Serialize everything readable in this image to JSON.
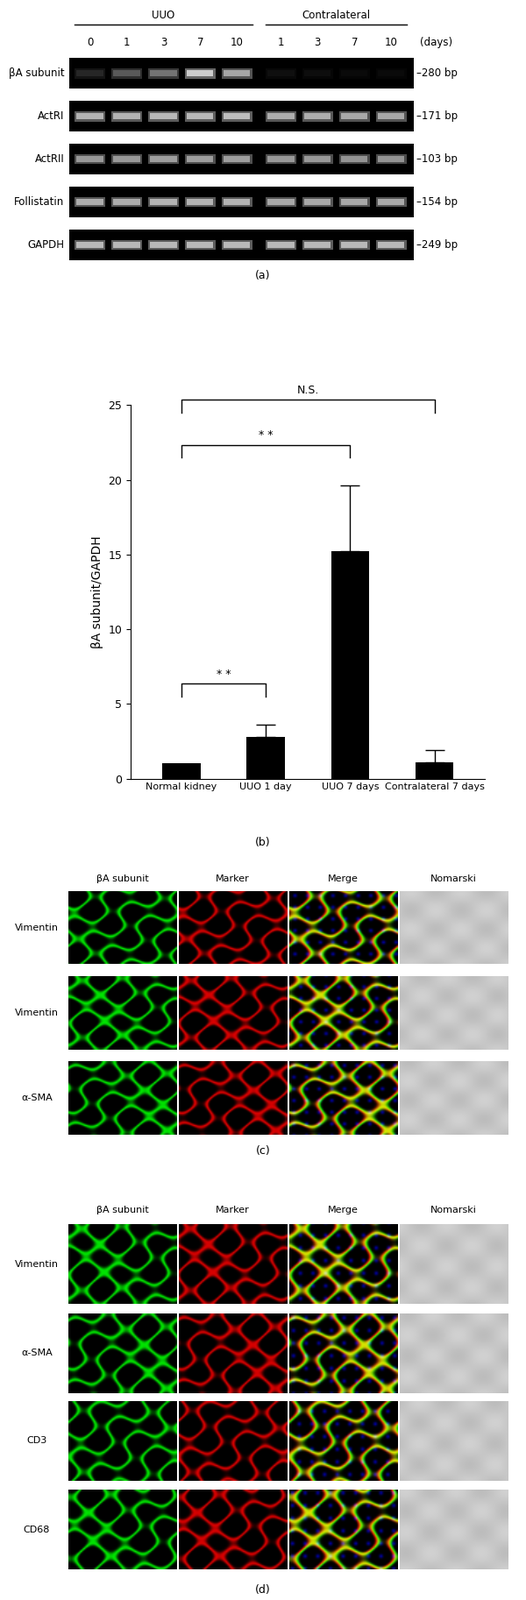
{
  "panel_a": {
    "label": "(a)",
    "unit": "(days)",
    "groups": [
      {
        "name": "UUO",
        "days": [
          "0",
          "1",
          "3",
          "7",
          "10"
        ]
      },
      {
        "name": "Contralateral",
        "days": [
          "1",
          "3",
          "7",
          "10"
        ]
      }
    ],
    "rows": [
      {
        "name": "βA subunit",
        "size": "–280 bp",
        "band_intensity": [
          0.15,
          0.35,
          0.45,
          0.8,
          0.65,
          0.06,
          0.05,
          0.04,
          0.04
        ]
      },
      {
        "name": "ActRI",
        "size": "–171 bp",
        "band_intensity": [
          0.7,
          0.7,
          0.72,
          0.72,
          0.74,
          0.68,
          0.68,
          0.66,
          0.66
        ]
      },
      {
        "name": "ActRII",
        "size": "–103 bp",
        "band_intensity": [
          0.6,
          0.6,
          0.62,
          0.62,
          0.62,
          0.6,
          0.6,
          0.58,
          0.58
        ]
      },
      {
        "name": "Follistatin",
        "size": "–154 bp",
        "band_intensity": [
          0.68,
          0.68,
          0.7,
          0.7,
          0.7,
          0.66,
          0.66,
          0.66,
          0.66
        ]
      },
      {
        "name": "GAPDH",
        "size": "–249 bp",
        "band_intensity": [
          0.72,
          0.72,
          0.72,
          0.72,
          0.72,
          0.72,
          0.72,
          0.72,
          0.72
        ]
      }
    ]
  },
  "chart_data": {
    "type": "bar",
    "label": "(b)",
    "ylabel": "βA subunit/GAPDH",
    "categories": [
      "Normal kidney",
      "UUO 1 day",
      "UUO 7 days",
      "Contralateral 7 days"
    ],
    "values": [
      1.0,
      2.8,
      15.2,
      1.1
    ],
    "errors": [
      0,
      0.8,
      4.4,
      0.8
    ],
    "color": "#000000",
    "ylim": [
      0,
      25
    ],
    "yticks": [
      0,
      5,
      10,
      15,
      20,
      25
    ],
    "significance": [
      {
        "between": [
          "Normal kidney",
          "UUO 1 day"
        ],
        "label": "* *"
      },
      {
        "between": [
          "Normal kidney",
          "UUO 7 days"
        ],
        "label": "* *"
      },
      {
        "between": [
          "Normal kidney",
          "Contralateral 7 days"
        ],
        "label": "N.S."
      }
    ]
  },
  "panel_c": {
    "label": "(c)",
    "columns": [
      "βA subunit",
      "Marker",
      "Merge",
      "Nomarski"
    ],
    "rows": [
      "Vimentin",
      "Vimentin",
      "α-SMA"
    ]
  },
  "panel_d": {
    "label": "(d)",
    "columns": [
      "βA subunit",
      "Marker",
      "Merge",
      "Nomarski"
    ],
    "rows": [
      "Vimentin",
      "α-SMA",
      "CD3",
      "CD68"
    ]
  }
}
